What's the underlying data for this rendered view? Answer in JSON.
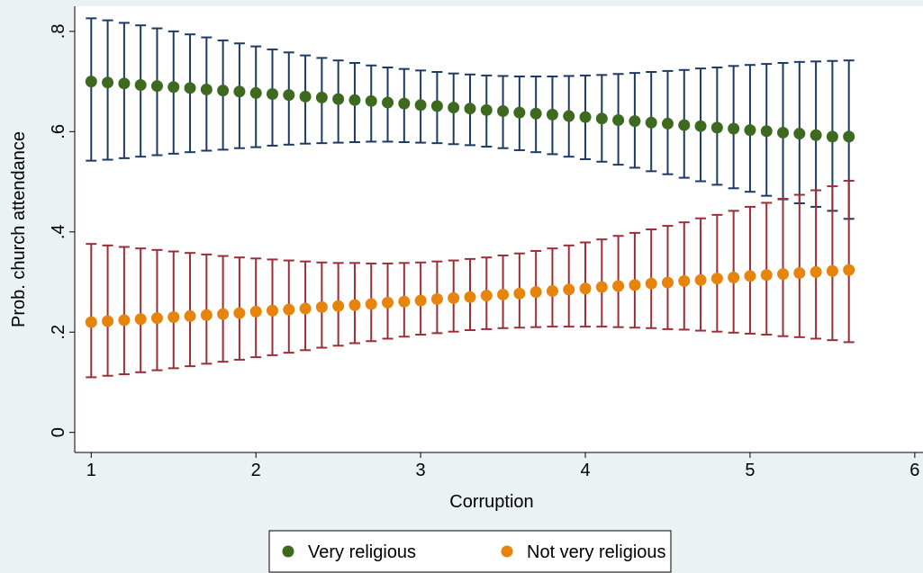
{
  "chart_data": {
    "type": "scatter",
    "xlabel": "Corruption",
    "ylabel": "Prob. church attendance",
    "xlim": [
      0.9,
      6.05
    ],
    "ylim": [
      -0.04,
      0.85
    ],
    "xticks": [
      1,
      2,
      3,
      4,
      5,
      6
    ],
    "xtick_labels": [
      "1",
      "2",
      "3",
      "4",
      "5",
      "6"
    ],
    "yticks": [
      0,
      0.2,
      0.4,
      0.6,
      0.8
    ],
    "ytick_labels": [
      "0",
      ".2",
      ".4",
      ".6",
      ".8"
    ],
    "grid": false,
    "legend_position": "bottom",
    "x": [
      1.0,
      1.1,
      1.2,
      1.3,
      1.4,
      1.5,
      1.6,
      1.7,
      1.8,
      1.9,
      2.0,
      2.1,
      2.2,
      2.3,
      2.4,
      2.5,
      2.6,
      2.7,
      2.8,
      2.9,
      3.0,
      3.1,
      3.2,
      3.3,
      3.4,
      3.5,
      3.6,
      3.7,
      3.8,
      3.9,
      4.0,
      4.1,
      4.2,
      4.3,
      4.4,
      4.5,
      4.6,
      4.7,
      4.8,
      4.9,
      5.0,
      5.1,
      5.2,
      5.3,
      5.4,
      5.5,
      5.6
    ],
    "series": [
      {
        "name": "Very religious",
        "marker_color": "#3d6a1e",
        "bar_color": "#1c3a64",
        "values": [
          0.7,
          0.698,
          0.696,
          0.693,
          0.691,
          0.689,
          0.687,
          0.684,
          0.682,
          0.68,
          0.677,
          0.675,
          0.673,
          0.67,
          0.668,
          0.665,
          0.663,
          0.661,
          0.658,
          0.656,
          0.653,
          0.651,
          0.648,
          0.646,
          0.643,
          0.641,
          0.638,
          0.636,
          0.634,
          0.631,
          0.629,
          0.626,
          0.623,
          0.621,
          0.618,
          0.616,
          0.613,
          0.611,
          0.608,
          0.606,
          0.603,
          0.601,
          0.598,
          0.596,
          0.593,
          0.59,
          0.59
        ],
        "lower": [
          0.542,
          0.544,
          0.547,
          0.55,
          0.553,
          0.556,
          0.559,
          0.562,
          0.564,
          0.567,
          0.569,
          0.572,
          0.574,
          0.576,
          0.577,
          0.578,
          0.579,
          0.58,
          0.58,
          0.579,
          0.578,
          0.577,
          0.575,
          0.573,
          0.57,
          0.567,
          0.563,
          0.559,
          0.555,
          0.55,
          0.545,
          0.54,
          0.534,
          0.528,
          0.521,
          0.515,
          0.508,
          0.501,
          0.494,
          0.487,
          0.48,
          0.472,
          0.465,
          0.457,
          0.45,
          0.442,
          0.426
        ],
        "upper": [
          0.826,
          0.822,
          0.817,
          0.812,
          0.806,
          0.8,
          0.794,
          0.788,
          0.782,
          0.776,
          0.77,
          0.764,
          0.758,
          0.752,
          0.747,
          0.742,
          0.737,
          0.732,
          0.728,
          0.725,
          0.722,
          0.719,
          0.716,
          0.714,
          0.712,
          0.711,
          0.71,
          0.71,
          0.71,
          0.711,
          0.712,
          0.713,
          0.715,
          0.717,
          0.719,
          0.721,
          0.723,
          0.726,
          0.728,
          0.731,
          0.733,
          0.735,
          0.737,
          0.739,
          0.74,
          0.741,
          0.742
        ]
      },
      {
        "name": "Not very religious",
        "marker_color": "#e7840b",
        "bar_color": "#9b2f35",
        "values": [
          0.22,
          0.222,
          0.224,
          0.226,
          0.228,
          0.23,
          0.232,
          0.234,
          0.236,
          0.238,
          0.241,
          0.243,
          0.245,
          0.247,
          0.25,
          0.252,
          0.254,
          0.256,
          0.259,
          0.261,
          0.263,
          0.266,
          0.268,
          0.27,
          0.273,
          0.275,
          0.277,
          0.28,
          0.282,
          0.285,
          0.287,
          0.29,
          0.292,
          0.294,
          0.297,
          0.299,
          0.302,
          0.304,
          0.307,
          0.309,
          0.312,
          0.314,
          0.316,
          0.318,
          0.32,
          0.322,
          0.324
        ],
        "lower": [
          0.11,
          0.113,
          0.116,
          0.12,
          0.124,
          0.128,
          0.132,
          0.137,
          0.141,
          0.145,
          0.15,
          0.154,
          0.159,
          0.164,
          0.169,
          0.173,
          0.178,
          0.182,
          0.187,
          0.191,
          0.195,
          0.198,
          0.201,
          0.204,
          0.206,
          0.208,
          0.209,
          0.21,
          0.211,
          0.211,
          0.211,
          0.211,
          0.21,
          0.209,
          0.208,
          0.206,
          0.205,
          0.203,
          0.201,
          0.199,
          0.197,
          0.195,
          0.192,
          0.19,
          0.187,
          0.184,
          0.18
        ],
        "upper": [
          0.376,
          0.373,
          0.37,
          0.367,
          0.364,
          0.361,
          0.358,
          0.355,
          0.352,
          0.349,
          0.347,
          0.345,
          0.343,
          0.341,
          0.339,
          0.338,
          0.338,
          0.337,
          0.337,
          0.338,
          0.339,
          0.341,
          0.343,
          0.346,
          0.349,
          0.353,
          0.357,
          0.362,
          0.367,
          0.373,
          0.379,
          0.385,
          0.392,
          0.398,
          0.405,
          0.412,
          0.419,
          0.427,
          0.434,
          0.442,
          0.45,
          0.458,
          0.466,
          0.474,
          0.483,
          0.491,
          0.502
        ]
      }
    ]
  }
}
